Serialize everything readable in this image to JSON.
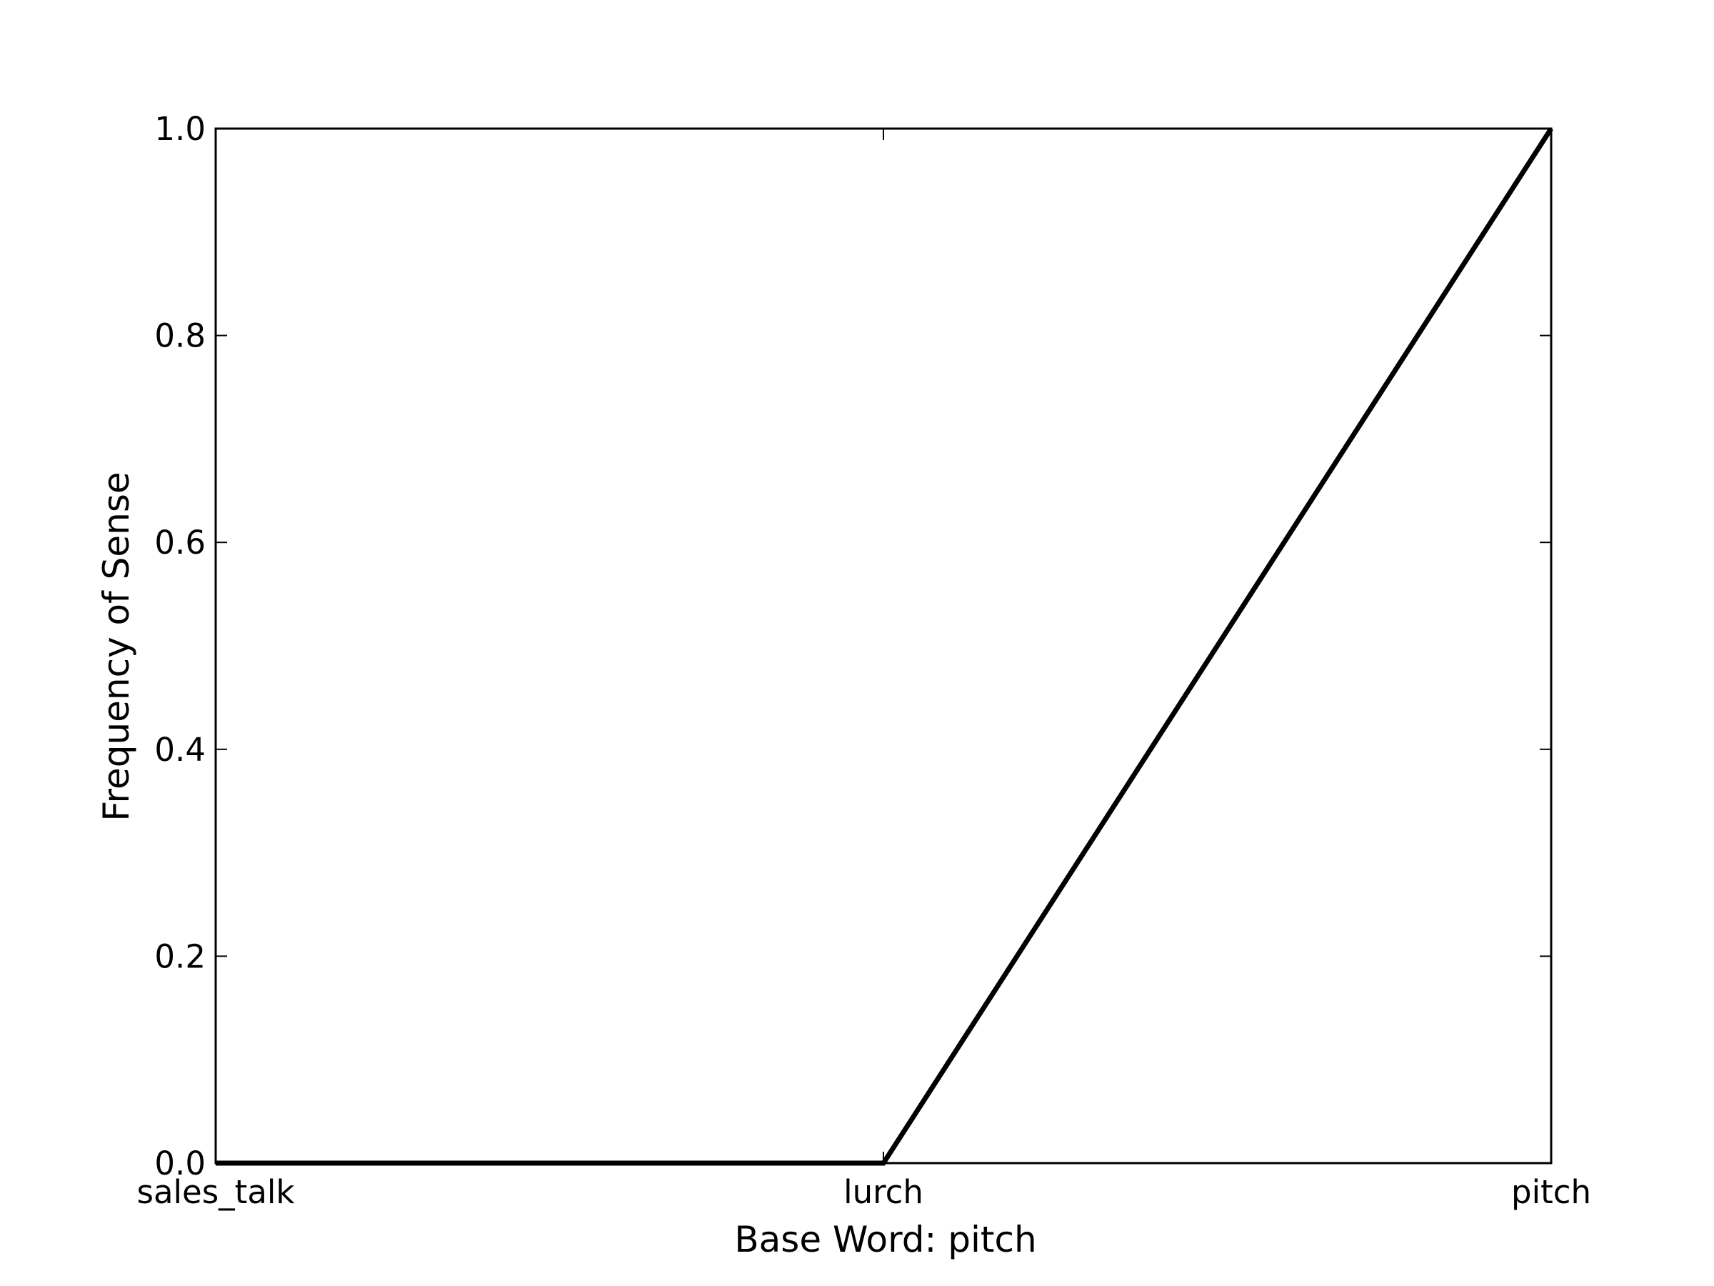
{
  "chart_data": {
    "type": "line",
    "categories": [
      "sales_talk",
      "lurch",
      "pitch"
    ],
    "series": [
      {
        "values": [
          0.0,
          0.0,
          1.0
        ]
      }
    ],
    "xlabel": "Base Word: pitch",
    "ylabel": "Frequency of Sense",
    "ylim": [
      0.0,
      1.0
    ],
    "yticks": [
      "0.0",
      "0.2",
      "0.4",
      "0.6",
      "0.8",
      "1.0"
    ],
    "grid": false,
    "line_color": "#000000"
  }
}
